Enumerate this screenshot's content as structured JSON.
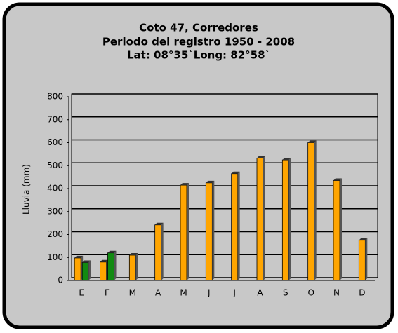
{
  "chart_data": {
    "type": "bar",
    "title": "Coto 47, Corredores",
    "subtitle": [
      "Periodo del registro 1950 - 2008",
      "Lat: 08°35`Long: 82°58`"
    ],
    "y_label": "Lluvia (mm)",
    "categories": [
      "E",
      "F",
      "M",
      "A",
      "M",
      "J",
      "J",
      "A",
      "S",
      "O",
      "N",
      "D"
    ],
    "series": [
      {
        "color": "#ffa500",
        "values": [
          98,
          80,
          110,
          242,
          415,
          425,
          465,
          533,
          525,
          600,
          435,
          175
        ]
      },
      {
        "color": "#118a11",
        "values": [
          78,
          120,
          null,
          null,
          null,
          null,
          null,
          null,
          null,
          null,
          null,
          null
        ]
      }
    ],
    "ylim": [
      0,
      800
    ],
    "yticks": [
      0,
      100,
      200,
      300,
      400,
      500,
      600,
      700,
      800
    ],
    "grid": true
  }
}
